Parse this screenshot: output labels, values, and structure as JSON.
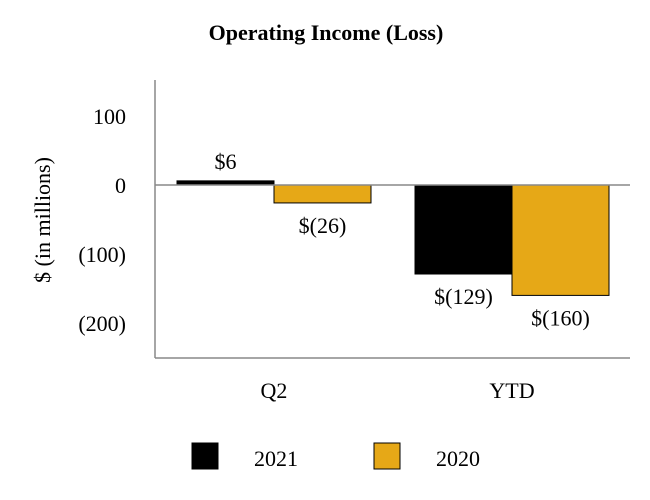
{
  "chart_data": {
    "type": "bar",
    "title": "Operating Income (Loss)",
    "ylabel": "$ (in millions)",
    "xlabel": "",
    "ylim": [
      -250,
      150
    ],
    "yticks": [
      100,
      0,
      -100,
      -200
    ],
    "ytick_labels": [
      "100",
      "0",
      "(100)",
      "(200)"
    ],
    "categories": [
      "Q2",
      "YTD"
    ],
    "series": [
      {
        "name": "2021",
        "color": "#000000",
        "values": [
          6,
          -129
        ],
        "labels": [
          "$6",
          "$(129)"
        ]
      },
      {
        "name": "2020",
        "color": "#e6a817",
        "values": [
          -26,
          -160
        ],
        "labels": [
          "$(26)",
          "$(160)"
        ]
      }
    ],
    "legend_position": "bottom-center",
    "grid": false
  }
}
